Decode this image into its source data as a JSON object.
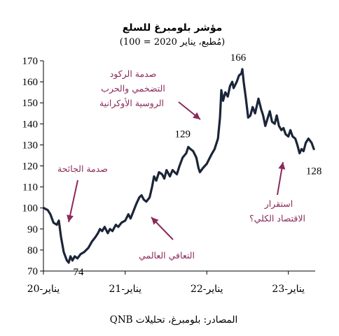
{
  "chart_data": {
    "type": "line",
    "title": "مؤشر بلومبرغ للسلع",
    "subtitle": "(مُطبع، يناير 2020 = 100)",
    "source": "المصادر: بلومبرغ، تحليلات QNB",
    "ylim": [
      70,
      170
    ],
    "yticks": [
      "70",
      "80",
      "90",
      "100",
      "110",
      "120",
      "130",
      "140",
      "150",
      "160",
      "170"
    ],
    "xlim": [
      "2020-01",
      "2023-05"
    ],
    "xticks": [
      {
        "x": "2020-01",
        "label": "يناير-20"
      },
      {
        "x": "2021-01",
        "label": "يناير-21"
      },
      {
        "x": "2022-01",
        "label": "يناير-22"
      },
      {
        "x": "2023-01",
        "label": "يناير-23"
      }
    ],
    "grid": false,
    "line_color": "#1b2538",
    "annotation_color": "#8b2a5c",
    "series": [
      {
        "points": [
          [
            "2020-01-02",
            100
          ],
          [
            "2020-01-20",
            99
          ],
          [
            "2020-02-01",
            97
          ],
          [
            "2020-02-15",
            93
          ],
          [
            "2020-03-01",
            92
          ],
          [
            "2020-03-10",
            94
          ],
          [
            "2020-03-20",
            86
          ],
          [
            "2020-04-01",
            79
          ],
          [
            "2020-04-15",
            75
          ],
          [
            "2020-04-23",
            74
          ],
          [
            "2020-05-01",
            77
          ],
          [
            "2020-05-10",
            75
          ],
          [
            "2020-05-20",
            77
          ],
          [
            "2020-06-01",
            76
          ],
          [
            "2020-06-15",
            78
          ],
          [
            "2020-07-01",
            79
          ],
          [
            "2020-07-20",
            81
          ],
          [
            "2020-08-05",
            84
          ],
          [
            "2020-08-20",
            86
          ],
          [
            "2020-09-01",
            88
          ],
          [
            "2020-09-10",
            90
          ],
          [
            "2020-09-20",
            89
          ],
          [
            "2020-10-01",
            91
          ],
          [
            "2020-10-15",
            88
          ],
          [
            "2020-10-25",
            90
          ],
          [
            "2020-11-05",
            89
          ],
          [
            "2020-11-20",
            92
          ],
          [
            "2020-12-01",
            91
          ],
          [
            "2020-12-15",
            93
          ],
          [
            "2021-01-01",
            94
          ],
          [
            "2021-01-15",
            97
          ],
          [
            "2021-01-25",
            95
          ],
          [
            "2021-02-05",
            98
          ],
          [
            "2021-02-20",
            102
          ],
          [
            "2021-03-05",
            105
          ],
          [
            "2021-03-15",
            106
          ],
          [
            "2021-03-25",
            104
          ],
          [
            "2021-04-05",
            103
          ],
          [
            "2021-04-20",
            105
          ],
          [
            "2021-05-01",
            110
          ],
          [
            "2021-05-10",
            115
          ],
          [
            "2021-05-20",
            113
          ],
          [
            "2021-06-01",
            117
          ],
          [
            "2021-06-15",
            116
          ],
          [
            "2021-06-25",
            114
          ],
          [
            "2021-07-05",
            118
          ],
          [
            "2021-07-20",
            115
          ],
          [
            "2021-08-01",
            118
          ],
          [
            "2021-08-10",
            117
          ],
          [
            "2021-08-20",
            116
          ],
          [
            "2021-09-01",
            120
          ],
          [
            "2021-09-15",
            124
          ],
          [
            "2021-10-01",
            126
          ],
          [
            "2021-10-10",
            129
          ],
          [
            "2021-10-20",
            128
          ],
          [
            "2021-11-01",
            127
          ],
          [
            "2021-11-15",
            124
          ],
          [
            "2021-11-25",
            119
          ],
          [
            "2021-12-01",
            117
          ],
          [
            "2021-12-15",
            119
          ],
          [
            "2022-01-01",
            121
          ],
          [
            "2022-01-15",
            124
          ],
          [
            "2022-01-25",
            126
          ],
          [
            "2022-02-05",
            128
          ],
          [
            "2022-02-20",
            133
          ],
          [
            "2022-03-01",
            143
          ],
          [
            "2022-03-07",
            156
          ],
          [
            "2022-03-15",
            151
          ],
          [
            "2022-03-25",
            155
          ],
          [
            "2022-04-05",
            153
          ],
          [
            "2022-04-15",
            158
          ],
          [
            "2022-04-25",
            160
          ],
          [
            "2022-05-01",
            157
          ],
          [
            "2022-05-15",
            160
          ],
          [
            "2022-05-25",
            163
          ],
          [
            "2022-06-05",
            164
          ],
          [
            "2022-06-09",
            166
          ],
          [
            "2022-06-15",
            160
          ],
          [
            "2022-06-25",
            152
          ],
          [
            "2022-07-05",
            143
          ],
          [
            "2022-07-15",
            144
          ],
          [
            "2022-07-25",
            148
          ],
          [
            "2022-08-05",
            145
          ],
          [
            "2022-08-20",
            152
          ],
          [
            "2022-09-01",
            147
          ],
          [
            "2022-09-10",
            144
          ],
          [
            "2022-09-20",
            139
          ],
          [
            "2022-10-01",
            143
          ],
          [
            "2022-10-10",
            146
          ],
          [
            "2022-10-20",
            141
          ],
          [
            "2022-11-01",
            140
          ],
          [
            "2022-11-10",
            144
          ],
          [
            "2022-11-20",
            139
          ],
          [
            "2022-12-01",
            137
          ],
          [
            "2022-12-10",
            138
          ],
          [
            "2022-12-20",
            135
          ],
          [
            "2023-01-01",
            134
          ],
          [
            "2023-01-10",
            137
          ],
          [
            "2023-01-20",
            134
          ],
          [
            "2023-02-01",
            133
          ],
          [
            "2023-02-10",
            130
          ],
          [
            "2023-02-20",
            126
          ],
          [
            "2023-03-01",
            128
          ],
          [
            "2023-03-10",
            127
          ],
          [
            "2023-03-20",
            131
          ],
          [
            "2023-04-01",
            133
          ],
          [
            "2023-04-15",
            131
          ],
          [
            "2023-04-25",
            128
          ]
        ]
      }
    ],
    "data_labels": [
      {
        "x": "2020-04-23",
        "y": 74,
        "text": "74"
      },
      {
        "x": "2021-10-10",
        "y": 129,
        "text": "129"
      },
      {
        "x": "2022-06-09",
        "y": 166,
        "text": "166"
      },
      {
        "x": "2023-04-25",
        "y": 128,
        "text": "128"
      }
    ],
    "annotations": [
      {
        "lines": [
          "صدمة الجائحة"
        ]
      },
      {
        "lines": [
          "التعافي العالمي"
        ]
      },
      {
        "lines": [
          "صدمة الركود",
          "التضخمي والحرب",
          "الروسية الأوكرانية"
        ]
      },
      {
        "lines": [
          "استقرار",
          "الاقتصاد الكلي؟"
        ]
      }
    ]
  }
}
